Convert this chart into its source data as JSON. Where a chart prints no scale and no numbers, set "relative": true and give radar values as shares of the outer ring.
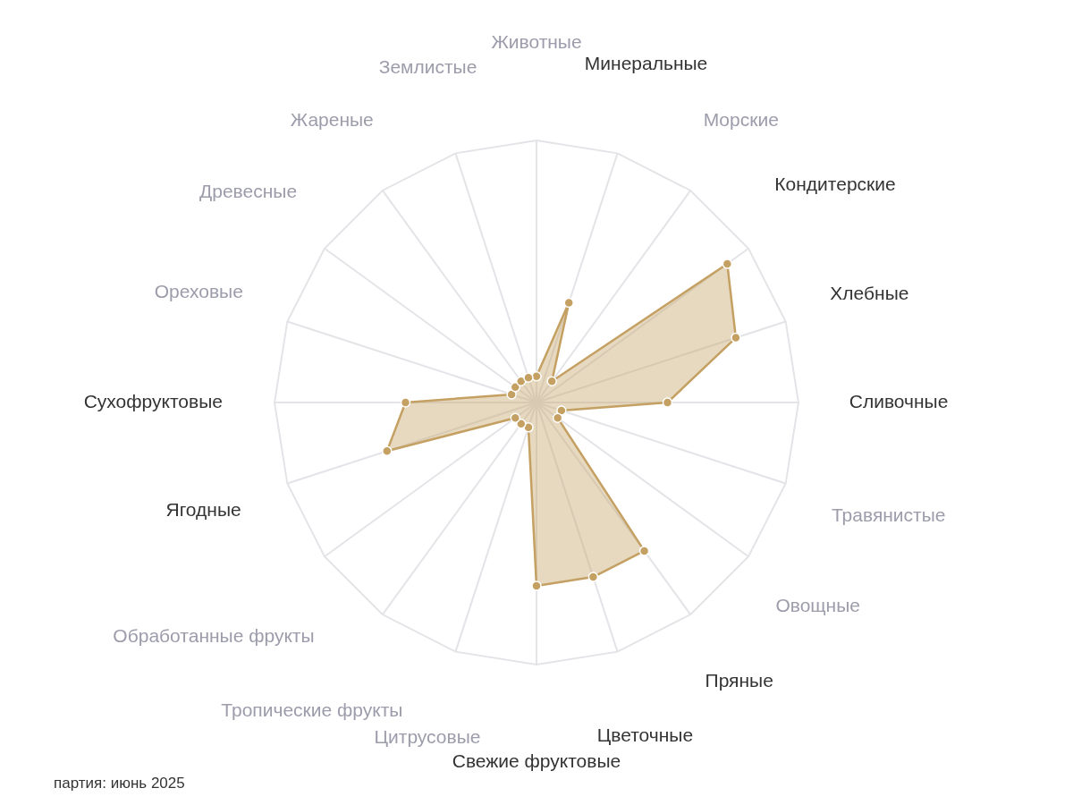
{
  "chart_data": {
    "type": "radar",
    "relative": true,
    "categories": [
      "Животные",
      "Минеральные",
      "Морские",
      "Кондитерские",
      "Хлебные",
      "Сливочные",
      "Травянистые",
      "Овощные",
      "Пряные",
      "Цветочные",
      "Свежие фруктовые",
      "Цитрусовые",
      "Тропические фрукты",
      "Обработанные фрукты",
      "Ягодные",
      "Сухофруктовые",
      "Ореховые",
      "Древесные",
      "Жареные",
      "Землистые"
    ],
    "series": [
      {
        "color": "#c4a062",
        "values": [
          0.1,
          0.4,
          0.1,
          0.9,
          0.8,
          0.5,
          0.1,
          0.1,
          0.7,
          0.7,
          0.7,
          0.1,
          0.1,
          0.1,
          0.6,
          0.5,
          0.1,
          0.1,
          0.1,
          0.1
        ]
      }
    ],
    "grid": true,
    "legend": false,
    "marker": "circle",
    "annotations": [
      "партия: июнь 2025"
    ]
  }
}
